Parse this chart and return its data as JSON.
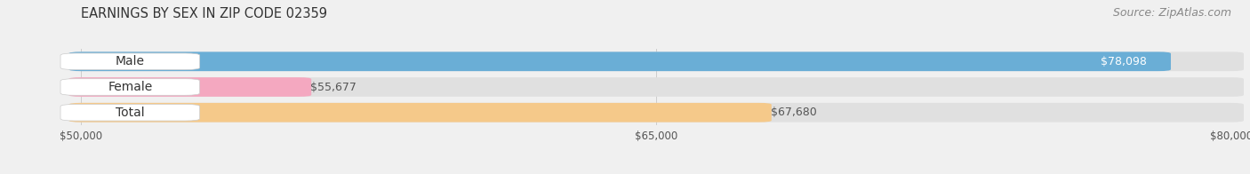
{
  "title": "EARNINGS BY SEX IN ZIP CODE 02359",
  "source": "Source: ZipAtlas.com",
  "categories": [
    "Male",
    "Female",
    "Total"
  ],
  "values": [
    78098,
    55677,
    67680
  ],
  "bar_colors": [
    "#6aaed6",
    "#f4a8c0",
    "#f5c98a"
  ],
  "label_inside": [
    true,
    false,
    false
  ],
  "x_min": 50000,
  "x_max": 80000,
  "tick_values": [
    50000,
    65000,
    80000
  ],
  "tick_labels": [
    "$50,000",
    "$65,000",
    "$80,000"
  ],
  "background_color": "#f0f0f0",
  "bar_background_color": "#e0e0e0",
  "title_fontsize": 10.5,
  "source_fontsize": 9,
  "label_fontsize": 9,
  "category_fontsize": 10
}
